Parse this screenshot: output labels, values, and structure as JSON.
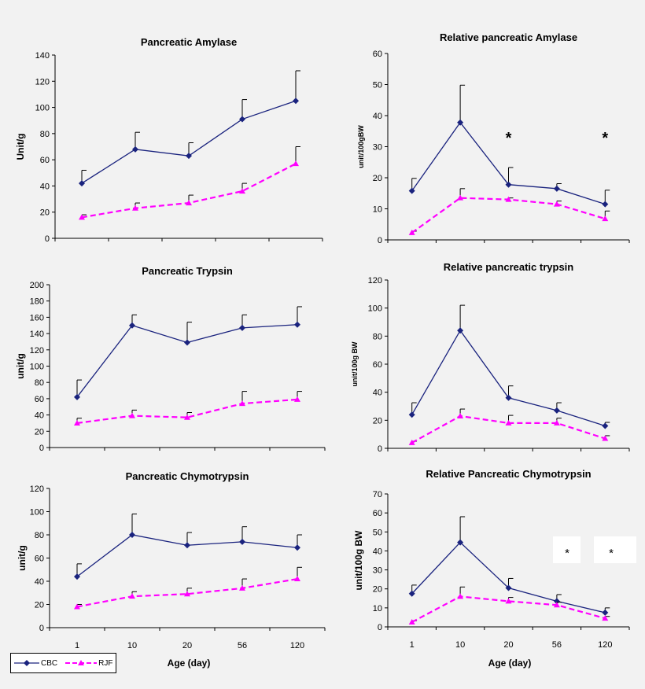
{
  "colors": {
    "cbc": "#1a237e",
    "rjf": "#ff00ff"
  },
  "legend": {
    "cbc": "CBC",
    "rjf": "RJF"
  },
  "xaxis": {
    "label": "Age (day)",
    "ticks": [
      "1",
      "10",
      "20",
      "56",
      "120"
    ]
  },
  "chart_data": [
    {
      "type": "line",
      "title": "Pancreatic Amylase",
      "ylabel": "Unit/g",
      "categories": [
        "1",
        "10",
        "20",
        "56",
        "120"
      ],
      "ylim": [
        0,
        140
      ],
      "yticks": [
        0,
        20,
        40,
        60,
        80,
        100,
        120,
        140
      ],
      "show_x_ticklabels": false,
      "series": [
        {
          "name": "CBC",
          "values": [
            42,
            68,
            63,
            91,
            105
          ],
          "err": [
            10,
            13,
            10,
            15,
            23
          ]
        },
        {
          "name": "RJF",
          "values": [
            16,
            23,
            27,
            36,
            57
          ],
          "err": [
            2,
            4,
            6,
            6,
            13
          ]
        }
      ],
      "annotations": []
    },
    {
      "type": "line",
      "title": "Relative pancreatic Amylase",
      "ylabel": "unit/100gBW",
      "categories": [
        "1",
        "10",
        "20",
        "56",
        "120"
      ],
      "ylim": [
        0,
        60
      ],
      "yticks": [
        0,
        10,
        20,
        30,
        40,
        50,
        60
      ],
      "show_x_ticklabels": false,
      "series": [
        {
          "name": "CBC",
          "values": [
            15.8,
            37.8,
            17.8,
            16.5,
            11.5
          ],
          "err": [
            4,
            12,
            5.5,
            1.6,
            4.5
          ]
        },
        {
          "name": "RJF",
          "values": [
            2.3,
            13.5,
            13,
            11.5,
            6.8
          ],
          "err": [
            0.5,
            3,
            0.5,
            1,
            2.5
          ]
        }
      ],
      "annotations": [
        {
          "text": "*",
          "at": "20"
        },
        {
          "text": "*",
          "at": "120"
        }
      ]
    },
    {
      "type": "line",
      "title": "Pancreatic Trypsin",
      "ylabel": "unit/g",
      "categories": [
        "1",
        "10",
        "20",
        "56",
        "120"
      ],
      "ylim": [
        0,
        200
      ],
      "yticks": [
        0,
        20,
        40,
        60,
        80,
        100,
        120,
        140,
        160,
        180,
        200
      ],
      "show_x_ticklabels": false,
      "series": [
        {
          "name": "CBC",
          "values": [
            62,
            150,
            129,
            147,
            151
          ],
          "err": [
            21,
            13,
            25,
            16,
            22
          ]
        },
        {
          "name": "RJF",
          "values": [
            30,
            39,
            37,
            54,
            59
          ],
          "err": [
            6,
            7,
            6,
            15,
            10
          ]
        }
      ],
      "annotations": []
    },
    {
      "type": "line",
      "title": "Relative pancreatic trypsin",
      "ylabel": "unit/100g BW",
      "categories": [
        "1",
        "10",
        "20",
        "56",
        "120"
      ],
      "ylim": [
        0,
        120
      ],
      "yticks": [
        0,
        20,
        40,
        60,
        80,
        100,
        120
      ],
      "show_x_ticklabels": false,
      "series": [
        {
          "name": "CBC",
          "values": [
            24,
            84,
            36,
            27,
            16
          ],
          "err": [
            8.5,
            18,
            8.5,
            5.5,
            2.5
          ]
        },
        {
          "name": "RJF",
          "values": [
            4,
            23,
            18,
            18,
            7
          ],
          "err": [
            1,
            5,
            5.5,
            3.5,
            2
          ]
        }
      ],
      "annotations": []
    },
    {
      "type": "line",
      "title": "Pancreatic Chymotrypsin",
      "ylabel": "unit/g",
      "categories": [
        "1",
        "10",
        "20",
        "56",
        "120"
      ],
      "ylim": [
        0,
        120
      ],
      "yticks": [
        0,
        20,
        40,
        60,
        80,
        100,
        120
      ],
      "show_x_ticklabels": true,
      "series": [
        {
          "name": "CBC",
          "values": [
            44,
            80,
            71,
            74,
            69
          ],
          "err": [
            11,
            18,
            11,
            13,
            11
          ]
        },
        {
          "name": "RJF",
          "values": [
            18,
            27,
            29,
            34,
            42
          ],
          "err": [
            2,
            4,
            5,
            8,
            10
          ]
        }
      ],
      "annotations": []
    },
    {
      "type": "line",
      "title": "Relative Pancreatic Chymotrypsin",
      "ylabel": "unit/100g BW",
      "categories": [
        "1",
        "10",
        "20",
        "56",
        "120"
      ],
      "ylim": [
        0,
        70
      ],
      "yticks": [
        0,
        10,
        20,
        30,
        40,
        50,
        60,
        70
      ],
      "show_x_ticklabels": true,
      "series": [
        {
          "name": "CBC",
          "values": [
            17.5,
            44.5,
            20.5,
            13.5,
            7.5
          ],
          "err": [
            4.5,
            13.5,
            5,
            3.5,
            2.5
          ]
        },
        {
          "name": "RJF",
          "values": [
            2.5,
            16,
            13.5,
            11.5,
            4.5
          ],
          "err": [
            0.7,
            5,
            2,
            1.5,
            1
          ]
        }
      ],
      "annotations": [
        {
          "text": "*",
          "at": "56"
        },
        {
          "text": "*",
          "at": "120"
        }
      ]
    }
  ]
}
